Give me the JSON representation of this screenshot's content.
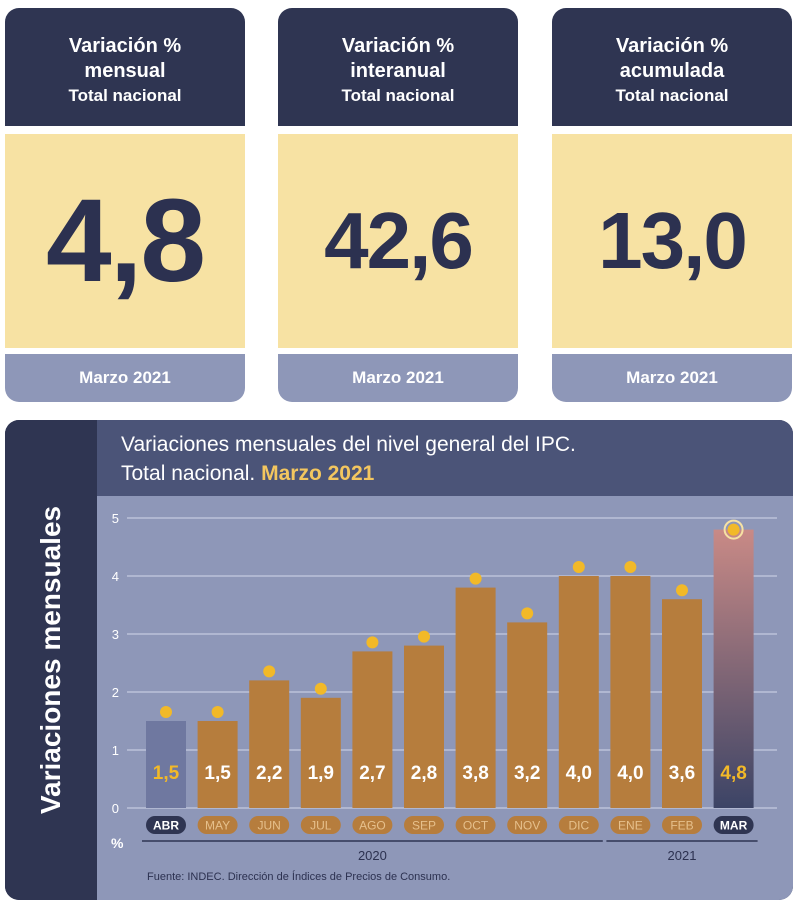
{
  "cards": [
    {
      "line1": "Variación %",
      "line2": "mensual",
      "line3": "Total nacional",
      "value": "4,8",
      "period": "Marzo 2021"
    },
    {
      "line1": "Variación %",
      "line2": "interanual",
      "line3": "Total nacional",
      "value": "42,6",
      "period": "Marzo 2021"
    },
    {
      "line1": "Variación %",
      "line2": "acumulada",
      "line3": "Total nacional",
      "value": "13,0",
      "period": "Marzo 2021"
    }
  ],
  "chart_data": {
    "type": "bar",
    "title_line1": "Variaciones mensuales del nivel general del IPC.",
    "title_line2": "Total nacional.",
    "title_highlight": "Marzo 2021",
    "ylabel": "Variaciones mensuales",
    "unit_label": "%",
    "ylim": [
      0,
      5
    ],
    "yticks": [
      0,
      1,
      2,
      3,
      4,
      5
    ],
    "grid": true,
    "categories": [
      "ABR",
      "MAY",
      "JUN",
      "JUL",
      "AGO",
      "SEP",
      "OCT",
      "NOV",
      "DIC",
      "ENE",
      "FEB",
      "MAR"
    ],
    "values": [
      1.5,
      1.5,
      2.2,
      1.9,
      2.7,
      2.8,
      3.8,
      3.2,
      4.0,
      4.0,
      3.6,
      4.8
    ],
    "value_labels": [
      "1,5",
      "1,5",
      "2,2",
      "1,9",
      "2,7",
      "2,8",
      "3,8",
      "3,2",
      "4,0",
      "4,0",
      "3,6",
      "4,8"
    ],
    "years": [
      {
        "label": "2020",
        "from": 0,
        "to": 8
      },
      {
        "label": "2021",
        "from": 9,
        "to": 11
      }
    ],
    "source": "Fuente: INDEC. Dirección de Índices de Precios de Consumo.",
    "colors": {
      "bar": "#b67d3d",
      "highlight_bar_top": "#c98a86",
      "highlight_bar_bottom": "#3c4466",
      "first_bar": "#6f78a0",
      "marker": "#f2b928",
      "value_text": "#ffffff",
      "highlight_text": "#f2b928"
    }
  }
}
